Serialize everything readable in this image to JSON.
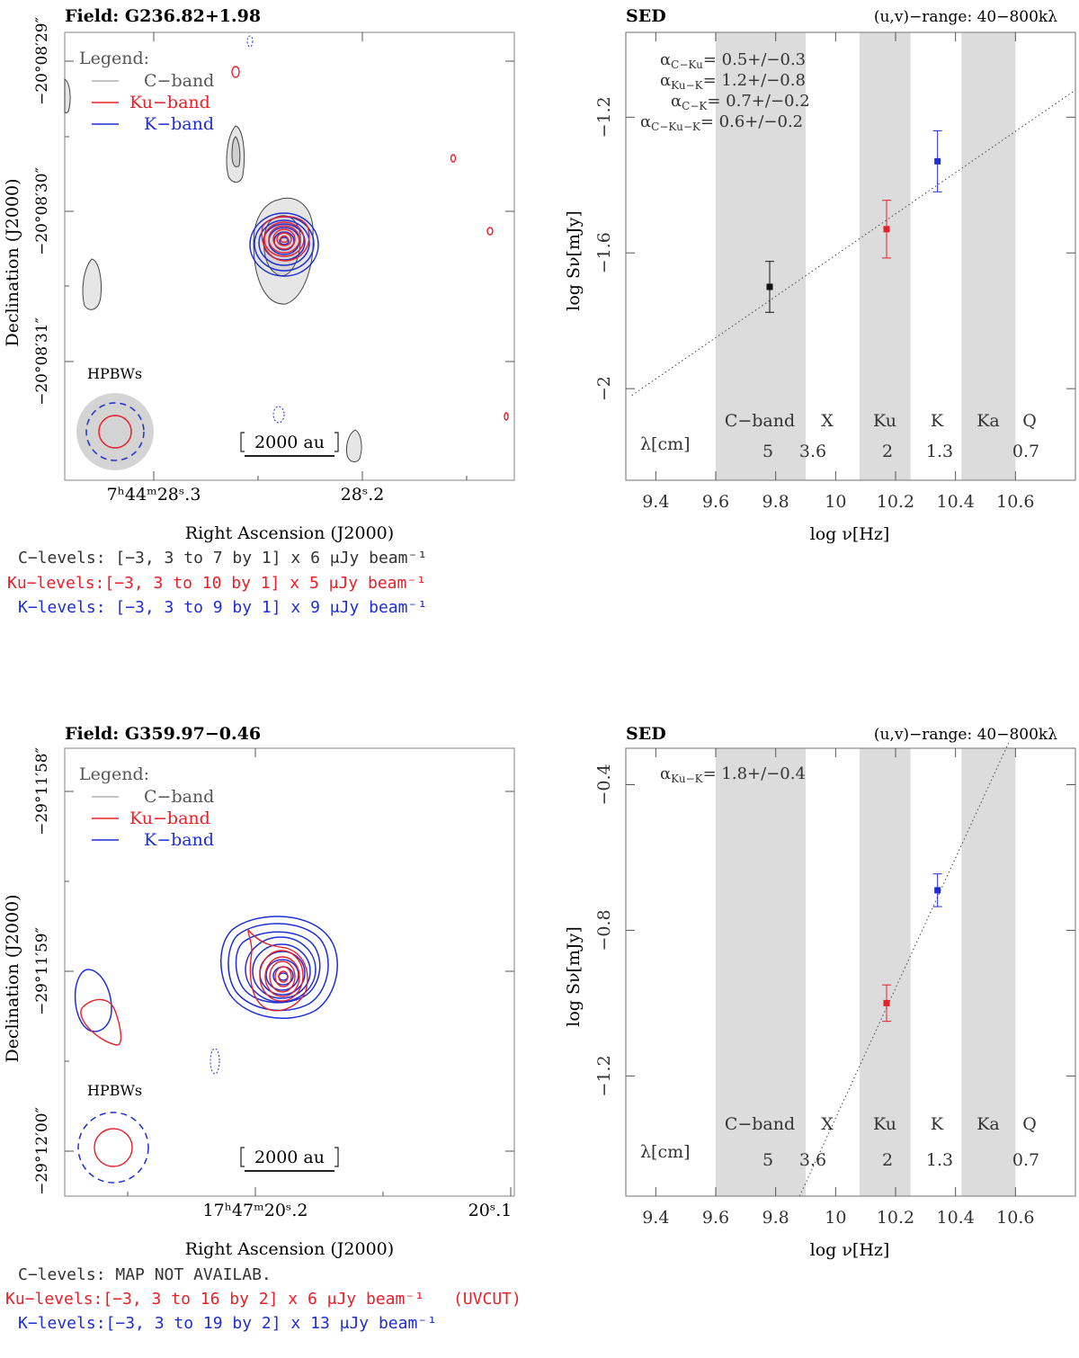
{
  "panels": [
    {
      "map": {
        "field_title": "Field: G236.82+1.98",
        "dec_ticks": [
          "−20°08′29″",
          "−20°08′30″",
          "−20°08′31″"
        ],
        "ra_ticks": [
          "7ʰ44ᵐ28ˢ.3",
          "28ˢ.2"
        ],
        "x_axis_label": "Right Ascension (J2000)",
        "y_axis_label": "Declination (J2000)",
        "legend": {
          "title": "Legend:",
          "c": "C−band",
          "ku": "Ku−band",
          "k": "K−band"
        },
        "hpbw_label": "HPBWs",
        "scale_bar": "2000 au",
        "levels": {
          "c": "C−levels: [−3, 3 to 7 by 1] x  6 μJy beam⁻¹",
          "ku": "Ku−levels:[−3, 3 to 10 by 1] x  5 μJy beam⁻¹",
          "k": "K−levels: [−3, 3 to 9 by 1] x  9 μJy beam⁻¹"
        }
      },
      "sed": {
        "title": "SED",
        "uv_range": "(u,v)−range:  40−800kλ",
        "x_label": "log ν[Hz]",
        "y_label": "log Sν[mJy]",
        "alphas": [
          {
            "label": "α",
            "sub": "C−Ku",
            "value": "0.5+/−0.3"
          },
          {
            "label": "α",
            "sub": "Ku−K",
            "value": "1.2+/−0.8"
          },
          {
            "label": "α",
            "sub": "C−K",
            "value": "0.7+/−0.2"
          },
          {
            "label": "α",
            "sub": "C−Ku−K",
            "value": "0.6+/−0.2"
          }
        ],
        "bands": [
          "C−band",
          "X",
          "Ku",
          "K",
          "Ka",
          "Q"
        ],
        "lambda_label": "λ[cm]",
        "wavelengths": [
          "5",
          "3.6",
          "2",
          "1.3",
          "0.7"
        ]
      }
    },
    {
      "map": {
        "field_title": "Field: G359.97−0.46",
        "dec_ticks": [
          "−29°11′58″",
          "−29°11′59″",
          "−29°12′00″"
        ],
        "ra_ticks": [
          "17ʰ47ᵐ20ˢ.2",
          "20ˢ.1"
        ],
        "x_axis_label": "Right Ascension (J2000)",
        "y_axis_label": "Declination (J2000)",
        "legend": {
          "title": "Legend:",
          "c": "C−band",
          "ku": "Ku−band",
          "k": "K−band"
        },
        "hpbw_label": "HPBWs",
        "scale_bar": "2000 au",
        "levels": {
          "c": "C−levels:   MAP NOT AVAILAB.",
          "ku": "Ku−levels:[−3, 3 to 16 by 2] x  6 μJy beam⁻¹",
          "ku_note": "(UVCUT)",
          "k": "K−levels:[−3, 3 to 19 by 2] x 13 μJy beam⁻¹"
        }
      },
      "sed": {
        "title": "SED",
        "uv_range": "(u,v)−range:  40−800kλ",
        "x_label": "log ν[Hz]",
        "y_label": "log Sν[mJy]",
        "alphas": [
          {
            "label": "α",
            "sub": "Ku−K",
            "value": "1.8+/−0.4"
          }
        ],
        "bands": [
          "C−band",
          "X",
          "Ku",
          "K",
          "Ka",
          "Q"
        ],
        "lambda_label": "λ[cm]",
        "wavelengths": [
          "5",
          "3.6",
          "2",
          "1.3",
          "0.7"
        ]
      }
    }
  ],
  "colors": {
    "c": "#444444",
    "ku": "#e8202a",
    "k": "#1e2ed6",
    "band_shade": "#dcdcdc",
    "beam_c": "#d4d4d4"
  },
  "chart_data": [
    {
      "type": "scatter",
      "title": "SED",
      "xlabel": "log ν[Hz]",
      "ylabel": "log Sν[mJy]",
      "xlim": [
        9.3,
        10.8
      ],
      "ylim": [
        -2.27,
        -0.95
      ],
      "x_ticks": [
        9.4,
        9.6,
        9.8,
        10.0,
        10.2,
        10.4,
        10.6
      ],
      "x_tick_labels": [
        "9.4",
        "9.6",
        "9.8",
        "10",
        "10.2",
        "10.4",
        "10.6"
      ],
      "y_ticks": [
        -1.2,
        -1.6,
        -2.0
      ],
      "y_tick_labels": [
        "−1.2",
        "−1.6",
        "−2"
      ],
      "shaded_bands": [
        [
          9.6,
          9.9
        ],
        [
          10.08,
          10.25
        ],
        [
          10.42,
          10.6
        ]
      ],
      "points": [
        {
          "band": "C",
          "x": 9.78,
          "y": -1.7,
          "err": 0.075,
          "color": "#111111"
        },
        {
          "band": "Ku",
          "x": 10.17,
          "y": -1.53,
          "err": 0.085,
          "color": "#e8202a"
        },
        {
          "band": "K",
          "x": 10.34,
          "y": -1.33,
          "err": 0.09,
          "color": "#1e2ed6"
        }
      ],
      "fit_line": {
        "x0": 9.32,
        "y0": -2.02,
        "x1": 10.8,
        "y1": -1.12
      }
    },
    {
      "type": "scatter",
      "title": "SED",
      "xlabel": "log ν[Hz]",
      "ylabel": "log Sν[mJy]",
      "xlim": [
        9.3,
        10.8
      ],
      "ylim": [
        -1.53,
        -0.3
      ],
      "x_ticks": [
        9.4,
        9.6,
        9.8,
        10.0,
        10.2,
        10.4,
        10.6
      ],
      "x_tick_labels": [
        "9.4",
        "9.6",
        "9.8",
        "10",
        "10.2",
        "10.4",
        "10.6"
      ],
      "y_ticks": [
        -0.4,
        -0.8,
        -1.2
      ],
      "y_tick_labels": [
        "−0.4",
        "−0.8",
        "−1.2"
      ],
      "shaded_bands": [
        [
          9.6,
          9.9
        ],
        [
          10.08,
          10.25
        ],
        [
          10.42,
          10.6
        ]
      ],
      "points": [
        {
          "band": "Ku",
          "x": 10.17,
          "y": -1.0,
          "err": 0.05,
          "color": "#e8202a"
        },
        {
          "band": "K",
          "x": 10.34,
          "y": -0.69,
          "err": 0.045,
          "color": "#1e2ed6"
        }
      ],
      "fit_line": {
        "x0": 9.88,
        "y0": -1.53,
        "x1": 10.58,
        "y1": -0.28
      }
    }
  ]
}
